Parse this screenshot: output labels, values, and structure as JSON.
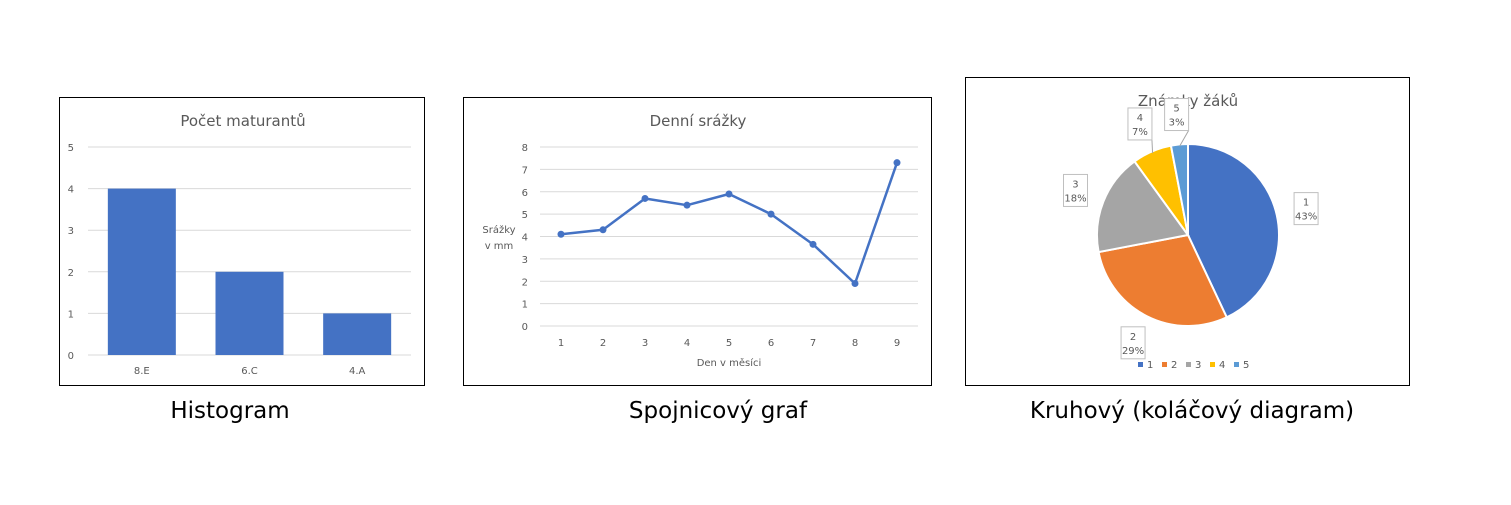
{
  "colors": {
    "blue": "#4472C4",
    "orange": "#ED7D31",
    "gray": "#A5A5A5",
    "gold": "#FFC000",
    "lightblue": "#5B9BD5",
    "grid": "#D9D9D9",
    "text": "#595959"
  },
  "captions": {
    "histogram": "Histogram",
    "line": "Spojnicový graf",
    "pie": "Kruhový (koláčový diagram)"
  },
  "chart_data": [
    {
      "type": "bar",
      "title": "Počet maturantů",
      "categories": [
        "8.E",
        "6.C",
        "4.A"
      ],
      "values": [
        4,
        2,
        1
      ],
      "yticks": [
        "0",
        "1",
        "2",
        "3",
        "4",
        "5"
      ],
      "ylim": [
        0,
        5
      ],
      "grid": true,
      "xlabel": "",
      "ylabel": ""
    },
    {
      "type": "line",
      "title": "Denní srážky",
      "x": [
        1,
        2,
        3,
        4,
        5,
        6,
        7,
        8,
        9
      ],
      "xticks": [
        "1",
        "2",
        "3",
        "4",
        "5",
        "6",
        "7",
        "8",
        "9"
      ],
      "values": [
        4.1,
        4.3,
        5.7,
        5.4,
        5.9,
        5.0,
        3.65,
        1.9,
        7.3
      ],
      "yticks": [
        "0",
        "1",
        "2",
        "3",
        "4",
        "5",
        "6",
        "7",
        "8"
      ],
      "ylim": [
        0,
        8
      ],
      "grid": true,
      "xlabel": "Den v měsíci",
      "ylabel_lines": [
        "Srážky",
        "v mm"
      ]
    },
    {
      "type": "pie",
      "title": "Známky žáků",
      "labels": [
        "1",
        "2",
        "3",
        "4",
        "5"
      ],
      "percent_labels": [
        "43%",
        "29%",
        "18%",
        "7%",
        "3%"
      ],
      "values": [
        43,
        29,
        18,
        7,
        3
      ],
      "legend": "bottom"
    }
  ]
}
